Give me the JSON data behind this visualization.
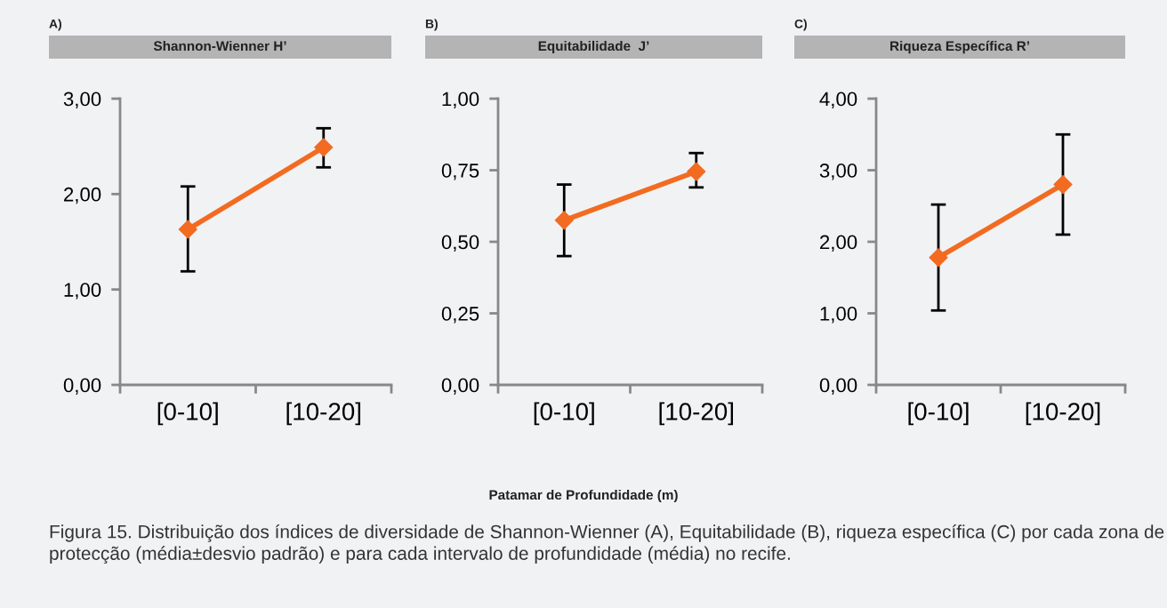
{
  "chart_data": [
    {
      "type": "line",
      "title": "Shannon-Wienner H’",
      "annotations": [
        "A)"
      ],
      "categories": [
        "[0-10]",
        "[10-20]"
      ],
      "series": [
        {
          "color": "#f26b21",
          "values": [
            1.63,
            2.49
          ],
          "errors": [
            [
              1.19,
              2.08
            ],
            [
              2.28,
              2.69
            ]
          ]
        }
      ],
      "ylim": [
        0,
        3
      ],
      "yticks": [
        {
          "value": 0,
          "label": "0,00"
        },
        {
          "value": 1,
          "label": "1,00"
        },
        {
          "value": 2,
          "label": "2,00"
        },
        {
          "value": 3,
          "label": "3,00"
        }
      ],
      "marker": "diamond",
      "grid": false,
      "legend": false
    },
    {
      "type": "line",
      "title": "Equitabilidade  J’",
      "xlabel": "Patamar de Profundidade (m)",
      "annotations": [
        "B)",
        "Figura 15. Distribuição dos índices de diversidade de Shannon-Wienner (A), Equitabilidade (B), riqueza específica (C) por cada zona de protecção (média±desvio padrão) e para cada intervalo de profundidade (média) no recife."
      ],
      "categories": [
        "[0-10]",
        "[10-20]"
      ],
      "series": [
        {
          "color": "#f26b21",
          "values": [
            0.575,
            0.745
          ],
          "errors": [
            [
              0.45,
              0.7
            ],
            [
              0.69,
              0.81
            ]
          ]
        }
      ],
      "ylim": [
        0,
        1
      ],
      "yticks": [
        {
          "value": 0,
          "label": "0,00"
        },
        {
          "value": 0.25,
          "label": "0,25"
        },
        {
          "value": 0.5,
          "label": "0,50"
        },
        {
          "value": 0.75,
          "label": "0,75"
        },
        {
          "value": 1,
          "label": "1,00"
        }
      ],
      "marker": "diamond",
      "grid": false,
      "legend": false
    },
    {
      "type": "line",
      "title": "Riqueza Específica R’",
      "annotations": [
        "C)"
      ],
      "categories": [
        "[0-10]",
        "[10-20]"
      ],
      "series": [
        {
          "color": "#f26b21",
          "values": [
            1.78,
            2.8
          ],
          "errors": [
            [
              1.04,
              2.52
            ],
            [
              2.1,
              3.5
            ]
          ]
        }
      ],
      "ylim": [
        0,
        4
      ],
      "yticks": [
        {
          "value": 0,
          "label": "0,00"
        },
        {
          "value": 1,
          "label": "1,00"
        },
        {
          "value": 2,
          "label": "2,00"
        },
        {
          "value": 3,
          "label": "3,00"
        },
        {
          "value": 4,
          "label": "4,00"
        }
      ],
      "marker": "diamond",
      "grid": false,
      "legend": false
    }
  ]
}
